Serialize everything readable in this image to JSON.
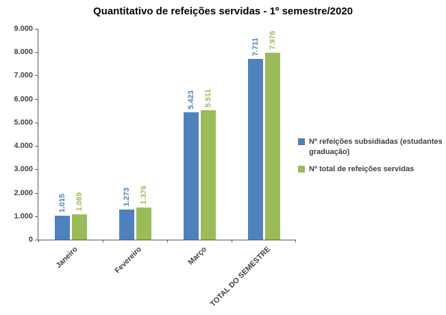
{
  "chart_data": {
    "type": "bar",
    "title": "Quantitativo de refeições servidas - 1º semestre/2020",
    "categories": [
      "Janeiro",
      "Fevereiro",
      "Março",
      "TOTAL DO SEMESTRE"
    ],
    "series": [
      {
        "name": "Nº refeições subsidiadas (estudantes graduação)",
        "color": "#4F81BD",
        "values": [
          1015,
          1273,
          5423,
          7711
        ],
        "labels": [
          "1.015",
          "1.273",
          "5.423",
          "7.711"
        ]
      },
      {
        "name": "Nº total de refeições servidas",
        "color": "#9BBB59",
        "values": [
          1089,
          1376,
          5511,
          7976
        ],
        "labels": [
          "1.089",
          "1.376",
          "5.511",
          "7.976"
        ]
      }
    ],
    "ylim": [
      0,
      9000
    ],
    "y_ticks": [
      "0",
      "1.000",
      "2.000",
      "3.000",
      "4.000",
      "5.000",
      "6.000",
      "7.000",
      "8.000",
      "9.000"
    ],
    "grid": false,
    "legend_position": "right",
    "xlabel": "",
    "ylabel": ""
  }
}
